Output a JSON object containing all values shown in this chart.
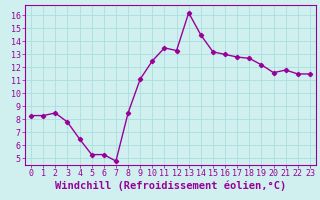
{
  "x": [
    0,
    1,
    2,
    3,
    4,
    5,
    6,
    7,
    8,
    9,
    10,
    11,
    12,
    13,
    14,
    15,
    16,
    17,
    18,
    19,
    20,
    21,
    22,
    23
  ],
  "y": [
    8.3,
    8.3,
    8.5,
    7.8,
    6.5,
    5.3,
    5.3,
    4.8,
    8.5,
    11.1,
    12.5,
    13.5,
    13.3,
    16.2,
    14.5,
    13.2,
    13.0,
    12.8,
    12.7,
    12.2,
    11.6,
    11.8,
    11.5,
    11.5
  ],
  "line_color": "#990099",
  "marker": "D",
  "marker_size": 2.2,
  "linewidth": 1.0,
  "xlabel": "Windchill (Refroidissement éolien,°C)",
  "xlabel_fontsize": 7.5,
  "bg_color": "#d0f0f0",
  "grid_color": "#aadddd",
  "tick_color": "#990099",
  "yticks": [
    5,
    6,
    7,
    8,
    9,
    10,
    11,
    12,
    13,
    14,
    15,
    16
  ],
  "xticks": [
    0,
    1,
    2,
    3,
    4,
    5,
    6,
    7,
    8,
    9,
    10,
    11,
    12,
    13,
    14,
    15,
    16,
    17,
    18,
    19,
    20,
    21,
    22,
    23
  ],
  "ylim": [
    4.5,
    16.8
  ],
  "xlim": [
    -0.5,
    23.5
  ],
  "tick_fontsize": 6.0
}
